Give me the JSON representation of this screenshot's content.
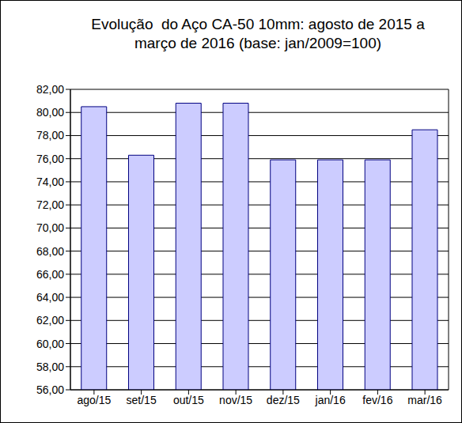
{
  "chart_data": {
    "type": "bar",
    "title": "Evolução  do Aço CA-50 10mm: agosto de 2015 a março de 2016 (base: jan/2009=100)",
    "categories": [
      "ago/15",
      "set/15",
      "out/15",
      "nov/15",
      "dez/15",
      "jan/16",
      "fev/16",
      "mar/16"
    ],
    "values": [
      80.5,
      76.3,
      80.8,
      80.8,
      75.9,
      75.9,
      75.9,
      78.5
    ],
    "color": "#ccccff",
    "ylim": [
      56,
      82
    ],
    "yticks": [
      {
        "value": 56,
        "label": "56,00"
      },
      {
        "value": 58,
        "label": "58,00"
      },
      {
        "value": 60,
        "label": "60,00"
      },
      {
        "value": 62,
        "label": "62,00"
      },
      {
        "value": 64,
        "label": "64,00"
      },
      {
        "value": 66,
        "label": "66,00"
      },
      {
        "value": 68,
        "label": "68,00"
      },
      {
        "value": 70,
        "label": "70,00"
      },
      {
        "value": 72,
        "label": "72,00"
      },
      {
        "value": 74,
        "label": "74,00"
      },
      {
        "value": 76,
        "label": "76,00"
      },
      {
        "value": 78,
        "label": "78,00"
      },
      {
        "value": 80,
        "label": "80,00"
      },
      {
        "value": 82,
        "label": "82,00"
      }
    ],
    "grid": true
  }
}
